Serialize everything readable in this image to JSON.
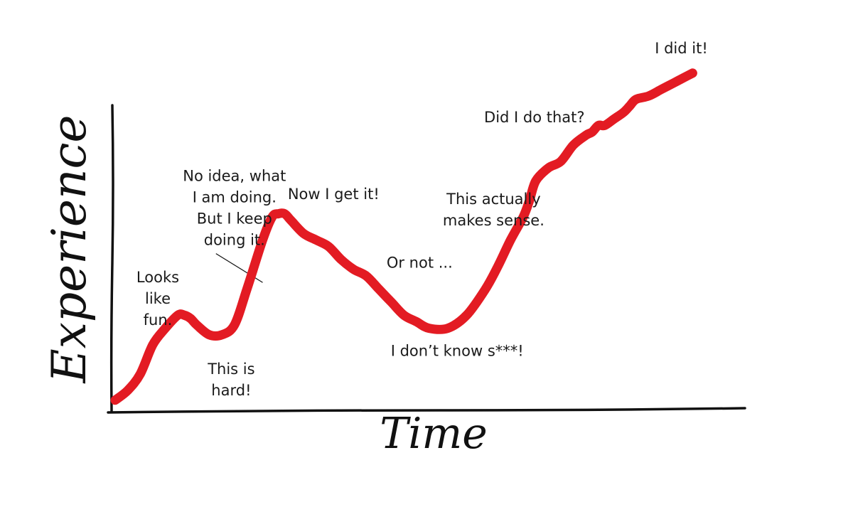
{
  "chart_data": {
    "type": "line",
    "title": "",
    "xlabel": "Time",
    "ylabel": "Experience",
    "grid": false,
    "legend": "none",
    "line_color": "#e31b23",
    "axis_color": "#111111",
    "xlim": [
      0,
      100
    ],
    "ylim": [
      0,
      100
    ],
    "series": [
      {
        "x": [
          0,
          2,
          4,
          6,
          8,
          10,
          11,
          12,
          13,
          15,
          17,
          19,
          21,
          23.5,
          25,
          26,
          27,
          28,
          30,
          32,
          34,
          36,
          38,
          40,
          42,
          44,
          46,
          48,
          50,
          53,
          56,
          59,
          61,
          63,
          65,
          66,
          67,
          69,
          71,
          73,
          75,
          76,
          77,
          78,
          79.5,
          81,
          82,
          83,
          85,
          87,
          89,
          91,
          92
        ],
        "y": [
          2,
          5,
          10,
          19,
          24,
          28,
          28,
          27,
          25,
          22,
          22,
          25,
          36,
          51,
          58,
          59,
          59,
          57,
          53,
          51,
          49,
          45,
          42,
          40,
          36,
          32,
          28,
          26,
          24,
          24,
          28,
          36,
          43,
          51,
          58,
          63,
          69,
          73,
          75,
          80,
          83,
          84,
          86,
          86,
          88,
          90,
          92,
          94,
          95,
          97,
          99,
          101,
          102
        ]
      }
    ],
    "annotations": [
      {
        "text": "Looks like fun.",
        "x": 6.8,
        "y": 38,
        "lines": [
          "Looks",
          "like",
          "fun."
        ]
      },
      {
        "text": "No idea, what I am doing. But I keep doing it.",
        "x": 19,
        "y": 69,
        "lines": [
          "No idea, what",
          "I am doing.",
          "But I keep",
          "doing it."
        ],
        "leader_to": [
          23.5,
          38
        ]
      },
      {
        "text": "This is hard!",
        "x": 18.5,
        "y": 10,
        "lines": [
          "This is",
          "hard!"
        ]
      },
      {
        "text": "Now I get it!",
        "x": 34.8,
        "y": 63.5,
        "lines": [
          "Now I get it!"
        ]
      },
      {
        "text": "Or not ...",
        "x": 48.5,
        "y": 42.5,
        "lines": [
          "Or not ..."
        ]
      },
      {
        "text": "I don’t know s***!",
        "x": 54.5,
        "y": 15.5,
        "lines": [
          "I don’t know s***!"
        ]
      },
      {
        "text": "This actually makes sense.",
        "x": 60.3,
        "y": 62,
        "lines": [
          "This actually",
          "makes sense."
        ]
      },
      {
        "text": "Did I do that?",
        "x": 66.8,
        "y": 87,
        "lines": [
          "Did I do that?"
        ]
      },
      {
        "text": "I did it!",
        "x": 90.2,
        "y": 108,
        "lines": [
          "I did it!"
        ]
      }
    ]
  }
}
